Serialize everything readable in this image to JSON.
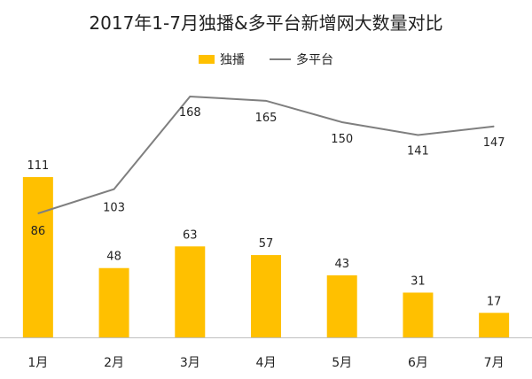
{
  "chart_data": {
    "type": "bar+line",
    "title": "2017年1-7月独播&多平台新增网大数量对比",
    "categories": [
      "1月",
      "2月",
      "3月",
      "4月",
      "5月",
      "6月",
      "7月"
    ],
    "series": [
      {
        "name": "独播",
        "type": "bar",
        "color": "#FFC000",
        "values": [
          111,
          48,
          63,
          57,
          43,
          31,
          17
        ]
      },
      {
        "name": "多平台",
        "type": "line",
        "color": "#7F7F7F",
        "values": [
          86,
          103,
          168,
          165,
          150,
          141,
          147
        ]
      }
    ],
    "legend_position": "top-center",
    "grid": false,
    "ylim": [
      0,
      180
    ]
  }
}
